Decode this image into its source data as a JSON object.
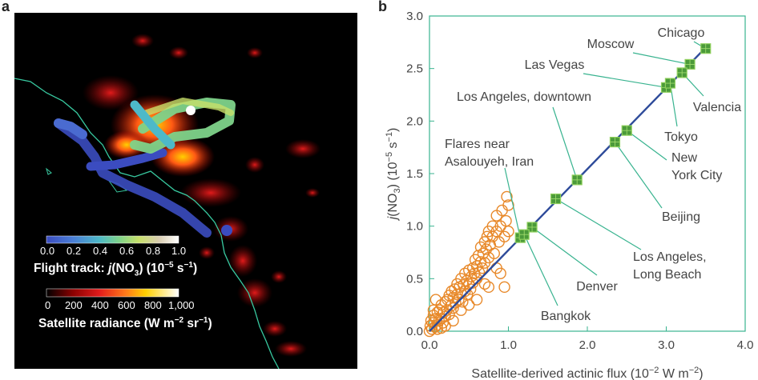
{
  "panel_a": {
    "letter": "a",
    "flight_colorbar": {
      "ticks": [
        "0.0",
        "0.2",
        "0.4",
        "0.6",
        "0.8",
        "1.0"
      ],
      "title_prefix": "Flight track: ",
      "title_var": "j",
      "title_mid": "(NO",
      "title_sub": "3",
      "title_units": ") (10",
      "title_exp": "−5",
      "title_units2": " s",
      "title_exp2": "−1",
      "title_close": ")",
      "colors": [
        "#3b4cc0",
        "#4a7ed6",
        "#4db9c8",
        "#7ed38a",
        "#c8e06a",
        "#d9cdb0",
        "#ffffff"
      ]
    },
    "radiance_colorbar": {
      "ticks": [
        "0",
        "200",
        "400",
        "600",
        "800",
        "1,000"
      ],
      "title_main": "Satellite radiance (W m",
      "title_exp": "−2",
      "title_mid": " sr",
      "title_exp2": "−1",
      "title_close": ")",
      "colors": [
        "#000000",
        "#8b0000",
        "#e11b1b",
        "#ff7a1a",
        "#ffd000",
        "#ffffff"
      ]
    }
  },
  "panel_b": {
    "letter": "b"
  },
  "chart_data": {
    "type": "scatter",
    "xlabel": "Satellite-derived actinic flux (10−2 W m−2)",
    "ylabel": "j(NO3) (10−5 s−1)",
    "xlim": [
      0,
      4.0
    ],
    "ylim": [
      0,
      3.0
    ],
    "xticks": [
      "0.0",
      "1.0",
      "2.0",
      "3.0",
      "4.0"
    ],
    "yticks": [
      "0.0",
      "0.5",
      "1.0",
      "1.5",
      "2.0",
      "2.5",
      "3.0"
    ],
    "fit_line": {
      "x": [
        0,
        3.5
      ],
      "y": [
        0,
        2.7
      ]
    },
    "cities": [
      {
        "name": "Chicago",
        "x": 3.5,
        "y": 2.69
      },
      {
        "name": "Moscow",
        "x": 3.3,
        "y": 2.54
      },
      {
        "name": "Las Vegas",
        "x": 3.0,
        "y": 2.32
      },
      {
        "name": "Valencia",
        "x": 3.2,
        "y": 2.46
      },
      {
        "name": "Tokyo",
        "x": 3.05,
        "y": 2.36
      },
      {
        "name": "Los Angeles, downtown",
        "x": 1.87,
        "y": 1.44
      },
      {
        "name": "New York City",
        "x": 2.5,
        "y": 1.91
      },
      {
        "name": "Beijing",
        "x": 2.35,
        "y": 1.8
      },
      {
        "name": "Flares near Asalouyeh, Iran",
        "x": 1.15,
        "y": 0.89
      },
      {
        "name": "Los Angeles, Long Beach",
        "x": 1.6,
        "y": 1.26
      },
      {
        "name": "Denver",
        "x": 1.3,
        "y": 0.99
      },
      {
        "name": "Bangkok",
        "x": 1.2,
        "y": 0.92
      }
    ],
    "flight_points": [
      [
        0.0,
        0.0
      ],
      [
        0.01,
        0.05
      ],
      [
        0.02,
        0.1
      ],
      [
        0.03,
        0.02
      ],
      [
        0.05,
        0.08
      ],
      [
        0.05,
        0.15
      ],
      [
        0.07,
        0.04
      ],
      [
        0.08,
        0.12
      ],
      [
        0.1,
        0.06
      ],
      [
        0.1,
        0.18
      ],
      [
        0.12,
        0.1
      ],
      [
        0.13,
        0.2
      ],
      [
        0.15,
        0.12
      ],
      [
        0.15,
        0.25
      ],
      [
        0.17,
        0.08
      ],
      [
        0.18,
        0.18
      ],
      [
        0.2,
        0.14
      ],
      [
        0.2,
        0.28
      ],
      [
        0.22,
        0.2
      ],
      [
        0.23,
        0.3
      ],
      [
        0.25,
        0.16
      ],
      [
        0.25,
        0.34
      ],
      [
        0.27,
        0.24
      ],
      [
        0.28,
        0.38
      ],
      [
        0.3,
        0.22
      ],
      [
        0.3,
        0.32
      ],
      [
        0.32,
        0.4
      ],
      [
        0.33,
        0.27
      ],
      [
        0.35,
        0.35
      ],
      [
        0.35,
        0.45
      ],
      [
        0.37,
        0.3
      ],
      [
        0.38,
        0.42
      ],
      [
        0.4,
        0.36
      ],
      [
        0.4,
        0.5
      ],
      [
        0.42,
        0.28
      ],
      [
        0.43,
        0.44
      ],
      [
        0.45,
        0.38
      ],
      [
        0.45,
        0.55
      ],
      [
        0.47,
        0.48
      ],
      [
        0.48,
        0.35
      ],
      [
        0.5,
        0.45
      ],
      [
        0.5,
        0.58
      ],
      [
        0.52,
        0.4
      ],
      [
        0.53,
        0.52
      ],
      [
        0.55,
        0.6
      ],
      [
        0.55,
        0.46
      ],
      [
        0.57,
        0.55
      ],
      [
        0.58,
        0.68
      ],
      [
        0.6,
        0.5
      ],
      [
        0.6,
        0.62
      ],
      [
        0.62,
        0.72
      ],
      [
        0.63,
        0.56
      ],
      [
        0.65,
        0.66
      ],
      [
        0.65,
        0.8
      ],
      [
        0.67,
        0.6
      ],
      [
        0.68,
        0.74
      ],
      [
        0.7,
        0.85
      ],
      [
        0.7,
        0.65
      ],
      [
        0.72,
        0.78
      ],
      [
        0.73,
        0.9
      ],
      [
        0.75,
        0.7
      ],
      [
        0.75,
        0.95
      ],
      [
        0.77,
        0.82
      ],
      [
        0.8,
        0.9
      ],
      [
        0.8,
        1.0
      ],
      [
        0.82,
        0.74
      ],
      [
        0.85,
        0.95
      ],
      [
        0.85,
        1.1
      ],
      [
        0.88,
        0.85
      ],
      [
        0.9,
        1.0
      ],
      [
        0.92,
        1.15
      ],
      [
        0.95,
        0.9
      ],
      [
        0.97,
        1.05
      ],
      [
        1.0,
        0.95
      ],
      [
        1.0,
        1.2
      ],
      [
        0.98,
        1.28
      ],
      [
        0.95,
        0.42
      ],
      [
        0.9,
        0.55
      ],
      [
        0.75,
        0.42
      ],
      [
        0.85,
        0.6
      ],
      [
        0.6,
        0.3
      ],
      [
        0.7,
        0.45
      ],
      [
        0.3,
        0.1
      ],
      [
        0.2,
        0.05
      ],
      [
        0.4,
        0.2
      ],
      [
        0.5,
        0.25
      ],
      [
        0.08,
        0.3
      ],
      [
        0.1,
        0.02
      ],
      [
        0.15,
        0.03
      ],
      [
        0.05,
        0.2
      ]
    ]
  }
}
